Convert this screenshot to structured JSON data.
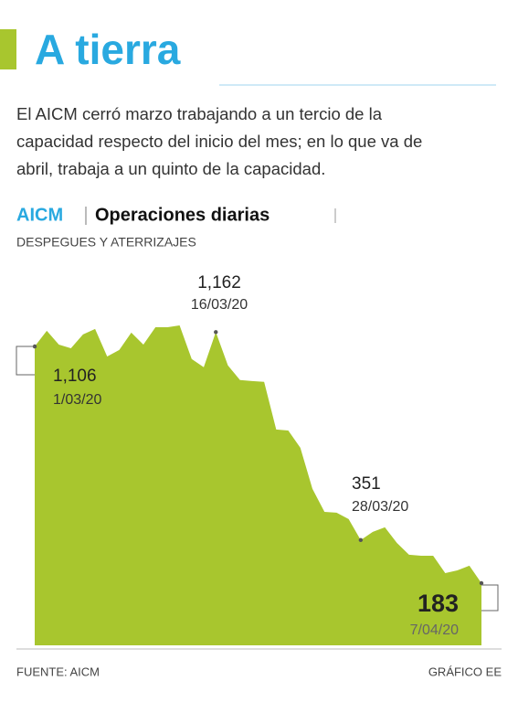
{
  "header": {
    "title": "A tierra",
    "description": [
      "El AICM cerró marzo trabajando a un tercio de la",
      "capacidad respecto del inicio del mes; en lo que va de",
      "abril, trabaja a un quinto de la capacidad."
    ]
  },
  "chart_data": {
    "type": "area",
    "title": "AICM",
    "subtitle_main": "Operaciones diarias",
    "subtitle": "DESPEGUES Y ATERRIZAJES",
    "color": "#a8c62e",
    "x": [
      "1/03/20",
      null,
      null,
      null,
      null,
      null,
      null,
      null,
      null,
      null,
      null,
      null,
      null,
      null,
      null,
      "16/03/20",
      null,
      null,
      null,
      null,
      null,
      null,
      null,
      null,
      null,
      null,
      null,
      "28/03/20",
      null,
      null,
      null,
      null,
      null,
      null,
      null,
      null,
      null,
      "7/04/20"
    ],
    "values": [
      1106,
      1167,
      1113,
      1099,
      1153,
      1174,
      1067,
      1092,
      1160,
      1113,
      1181,
      1181,
      1188,
      1057,
      1025,
      1162,
      1032,
      975,
      971,
      968,
      782,
      778,
      711,
      551,
      461,
      458,
      433,
      351,
      383,
      401,
      340,
      294,
      290,
      290,
      222,
      233,
      251,
      183
    ],
    "value_labels": [
      "1,106",
      null,
      null,
      null,
      null,
      null,
      null,
      null,
      null,
      null,
      null,
      null,
      null,
      null,
      null,
      "1,162",
      null,
      null,
      null,
      null,
      null,
      null,
      null,
      null,
      null,
      null,
      null,
      "351",
      null,
      null,
      null,
      null,
      null,
      null,
      null,
      null,
      null,
      "183"
    ]
  },
  "footer": {
    "source": "FUENTE: AICM",
    "credit": "GRÁFICO EE"
  }
}
